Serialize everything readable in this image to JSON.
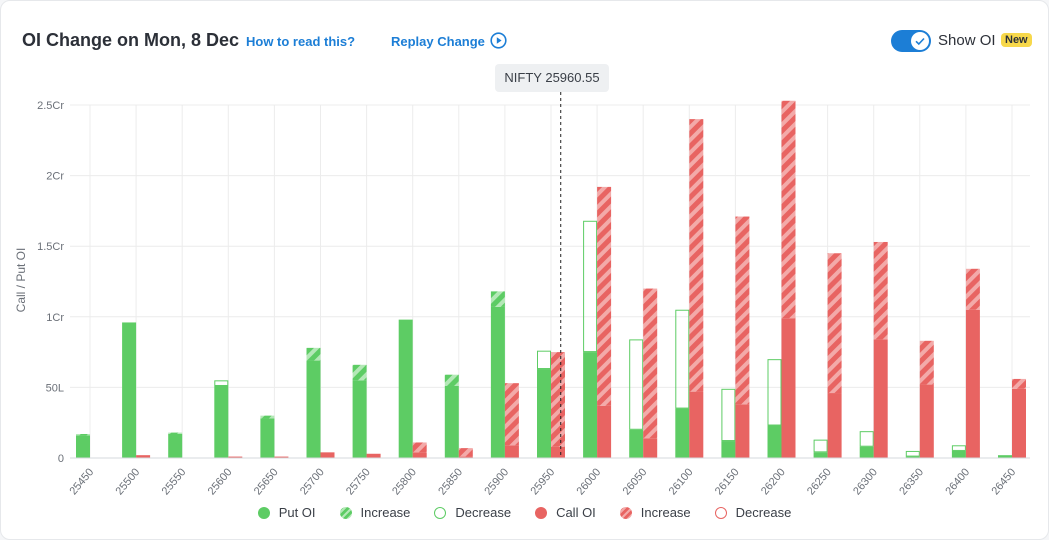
{
  "header": {
    "title": "OI Change on Mon, 8 Dec",
    "how_to_read": "How to read this?",
    "replay": "Replay Change",
    "show_oi": "Show OI",
    "new_badge": "New"
  },
  "tooltip": {
    "text": "NIFTY 25960.55"
  },
  "colors": {
    "put": "#5dcc64",
    "call": "#e86462",
    "grid": "#ececec"
  },
  "chart_data": {
    "type": "bar",
    "ylabel": "Call / Put OI",
    "y_ticks": [
      "0",
      "50L",
      "1Cr",
      "1.5Cr",
      "2Cr",
      "2.5Cr"
    ],
    "y_tick_values": [
      0,
      50,
      100,
      150,
      200,
      250
    ],
    "y_unit": "Lakh",
    "ylim": [
      0,
      250
    ],
    "spot": 25960.55,
    "categories": [
      "25450",
      "25500",
      "25550",
      "25600",
      "25650",
      "25700",
      "25750",
      "25800",
      "25850",
      "25900",
      "25950",
      "26000",
      "26050",
      "26100",
      "26150",
      "26200",
      "26250",
      "26300",
      "26350",
      "26400",
      "26450"
    ],
    "series": [
      {
        "name": "Put OI",
        "values": [
          16,
          96,
          17,
          51,
          28,
          69,
          55,
          98,
          51,
          107,
          63,
          75,
          20,
          35,
          12,
          23,
          4,
          8,
          1,
          5,
          2
        ]
      },
      {
        "name": "Put OI Increase",
        "values": [
          1,
          0,
          1,
          0,
          2,
          9,
          11,
          0,
          8,
          11,
          0,
          0,
          0,
          0,
          0,
          0,
          0,
          0,
          0,
          0,
          0
        ]
      },
      {
        "name": "Put OI Decrease",
        "values": [
          0,
          0,
          0,
          4,
          0,
          0,
          0,
          0,
          0,
          0,
          13,
          93,
          64,
          70,
          37,
          47,
          9,
          11,
          4,
          4,
          0
        ]
      },
      {
        "name": "Call OI",
        "values": [
          0,
          2,
          0,
          1,
          1,
          4,
          3,
          4,
          1,
          9,
          8,
          37,
          14,
          47,
          38,
          99,
          46,
          84,
          52,
          105,
          49
        ]
      },
      {
        "name": "Call OI Increase",
        "values": [
          0,
          0,
          0,
          0,
          0,
          0,
          0,
          7,
          6,
          44,
          67,
          155,
          106,
          193,
          133,
          154,
          99,
          69,
          31,
          29,
          7
        ]
      },
      {
        "name": "Call OI Decrease",
        "values": [
          0,
          0,
          0,
          0,
          0,
          0,
          0,
          0,
          0,
          0,
          0,
          0,
          0,
          0,
          0,
          0,
          0,
          0,
          0,
          0,
          0
        ]
      }
    ]
  },
  "legend": [
    {
      "label": "Put OI",
      "kind": "put-solid"
    },
    {
      "label": "Increase",
      "kind": "put-hatch"
    },
    {
      "label": "Decrease",
      "kind": "put-outline"
    },
    {
      "label": "Call OI",
      "kind": "call-solid"
    },
    {
      "label": "Increase",
      "kind": "call-hatch"
    },
    {
      "label": "Decrease",
      "kind": "call-outline"
    }
  ]
}
